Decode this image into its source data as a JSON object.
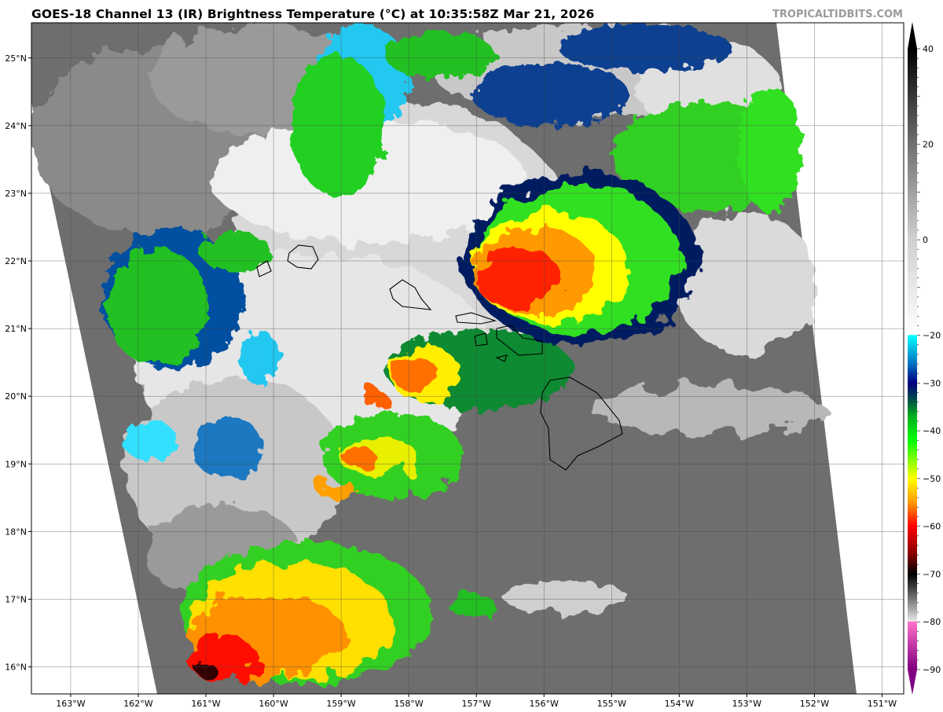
{
  "header": {
    "title": "GOES-18 Channel 13 (IR) Brightness Temperature (°C) at 10:35:58Z Mar 21, 2026",
    "watermark": "TROPICALTIDBITS.COM"
  },
  "map": {
    "projection": "lat-lon",
    "extent": {
      "lon": [
        -163.58,
        -150.68
      ],
      "lat": [
        15.6,
        25.52
      ]
    },
    "lon_ticks": [
      {
        "value": -163,
        "label": "163°W"
      },
      {
        "value": -162,
        "label": "162°W"
      },
      {
        "value": -161,
        "label": "161°W"
      },
      {
        "value": -160,
        "label": "160°W"
      },
      {
        "value": -159,
        "label": "159°W"
      },
      {
        "value": -158,
        "label": "158°W"
      },
      {
        "value": -157,
        "label": "157°W"
      },
      {
        "value": -156,
        "label": "156°W"
      },
      {
        "value": -155,
        "label": "155°W"
      },
      {
        "value": -154,
        "label": "154°W"
      },
      {
        "value": -153,
        "label": "153°W"
      },
      {
        "value": -152,
        "label": "152°W"
      },
      {
        "value": -151,
        "label": "151°W"
      }
    ],
    "lat_ticks": [
      {
        "value": 25,
        "label": "25°N"
      },
      {
        "value": 24,
        "label": "24°N"
      },
      {
        "value": 23,
        "label": "23°N"
      },
      {
        "value": 22,
        "label": "22°N"
      },
      {
        "value": 21,
        "label": "21°N"
      },
      {
        "value": 20,
        "label": "20°N"
      },
      {
        "value": 19,
        "label": "19°N"
      },
      {
        "value": 18,
        "label": "18°N"
      },
      {
        "value": 17,
        "label": "17°N"
      },
      {
        "value": 16,
        "label": "16°N"
      }
    ],
    "grid": true
  },
  "colorbar": {
    "range": [
      -90,
      40
    ],
    "extend": "both",
    "ticks": [
      {
        "value": 40,
        "label": "40"
      },
      {
        "value": 20,
        "label": "20"
      },
      {
        "value": 0,
        "label": "0"
      },
      {
        "value": -20,
        "label": "−20"
      },
      {
        "value": -30,
        "label": "−30"
      },
      {
        "value": -40,
        "label": "−40"
      },
      {
        "value": -50,
        "label": "−50"
      },
      {
        "value": -60,
        "label": "−60"
      },
      {
        "value": -70,
        "label": "−70"
      },
      {
        "value": -80,
        "label": "−80"
      },
      {
        "value": -90,
        "label": "−90"
      }
    ],
    "stops": [
      {
        "value": 40,
        "color": "#000000"
      },
      {
        "value": 20,
        "color": "#707070"
      },
      {
        "value": 0,
        "color": "#d0d0d0"
      },
      {
        "value": -19.9,
        "color": "#ffffff"
      },
      {
        "value": -20,
        "color": "#00ffff"
      },
      {
        "value": -26,
        "color": "#0070c0"
      },
      {
        "value": -30,
        "color": "#000080"
      },
      {
        "value": -34,
        "color": "#005a40"
      },
      {
        "value": -37,
        "color": "#00b020"
      },
      {
        "value": -42,
        "color": "#00ff00"
      },
      {
        "value": -50,
        "color": "#ffff00"
      },
      {
        "value": -55,
        "color": "#ff9900"
      },
      {
        "value": -60,
        "color": "#ff0000"
      },
      {
        "value": -66,
        "color": "#800000"
      },
      {
        "value": -70,
        "color": "#000000"
      },
      {
        "value": -75,
        "color": "#707070"
      },
      {
        "value": -79.9,
        "color": "#e8e8e8"
      },
      {
        "value": -80,
        "color": "#ff70c8"
      },
      {
        "value": -90,
        "color": "#800080"
      }
    ]
  }
}
